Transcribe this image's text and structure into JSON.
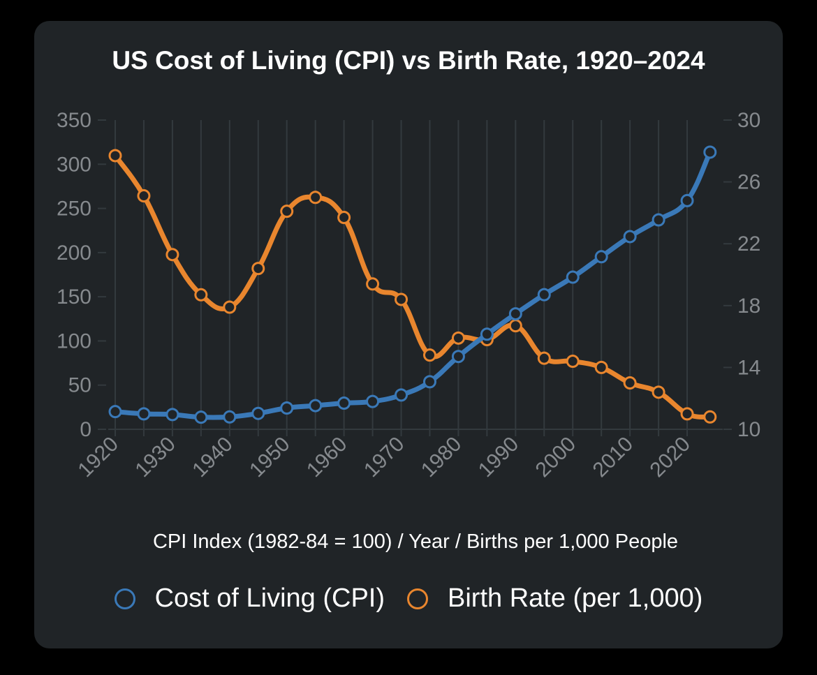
{
  "colors": {
    "background": "#000000",
    "card": "#202427",
    "grid": "#333a3e",
    "tick": "#868a8e",
    "cpi": "#3a79b8",
    "birth": "#e9862e"
  },
  "legend": {
    "cpi_label": "Cost of Living (CPI)",
    "birth_label": "Birth Rate (per 1,000)"
  },
  "chart_data": {
    "type": "line",
    "title": "US Cost of Living (CPI) vs Birth Rate, 1920–2024",
    "xlabel": "CPI Index (1982-84 = 100) / Year / Births per 1,000 People",
    "x": [
      1920,
      1925,
      1930,
      1935,
      1940,
      1945,
      1950,
      1955,
      1960,
      1965,
      1970,
      1975,
      1980,
      1985,
      1990,
      1995,
      2000,
      2005,
      2010,
      2015,
      2020,
      2024
    ],
    "xticks": [
      "1920",
      "1930",
      "1940",
      "1950",
      "1960",
      "1970",
      "1980",
      "1990",
      "2000",
      "2010",
      "2020"
    ],
    "y_left": {
      "ylim": [
        0,
        350
      ],
      "ticks": [
        "0",
        "50",
        "100",
        "150",
        "200",
        "250",
        "300",
        "350"
      ]
    },
    "y_right": {
      "ylim": [
        10,
        30
      ],
      "ticks": [
        "10",
        "14",
        "18",
        "22",
        "26",
        "30"
      ]
    },
    "series": [
      {
        "name": "Cost of Living (CPI)",
        "axis": "left",
        "values": [
          20,
          17.5,
          16.7,
          13.7,
          14.0,
          18.0,
          24.1,
          26.8,
          29.6,
          31.5,
          38.8,
          53.8,
          82.4,
          107.6,
          130.7,
          152.4,
          172.2,
          195.3,
          218.1,
          237.0,
          258.8,
          313.7
        ]
      },
      {
        "name": "Birth Rate (per 1,000)",
        "axis": "right",
        "values": [
          27.7,
          25.1,
          21.3,
          18.7,
          17.9,
          20.4,
          24.1,
          25.0,
          23.7,
          19.4,
          18.4,
          14.8,
          15.9,
          15.8,
          16.7,
          14.6,
          14.4,
          14.0,
          13.0,
          12.4,
          11.0,
          10.8
        ]
      }
    ]
  }
}
